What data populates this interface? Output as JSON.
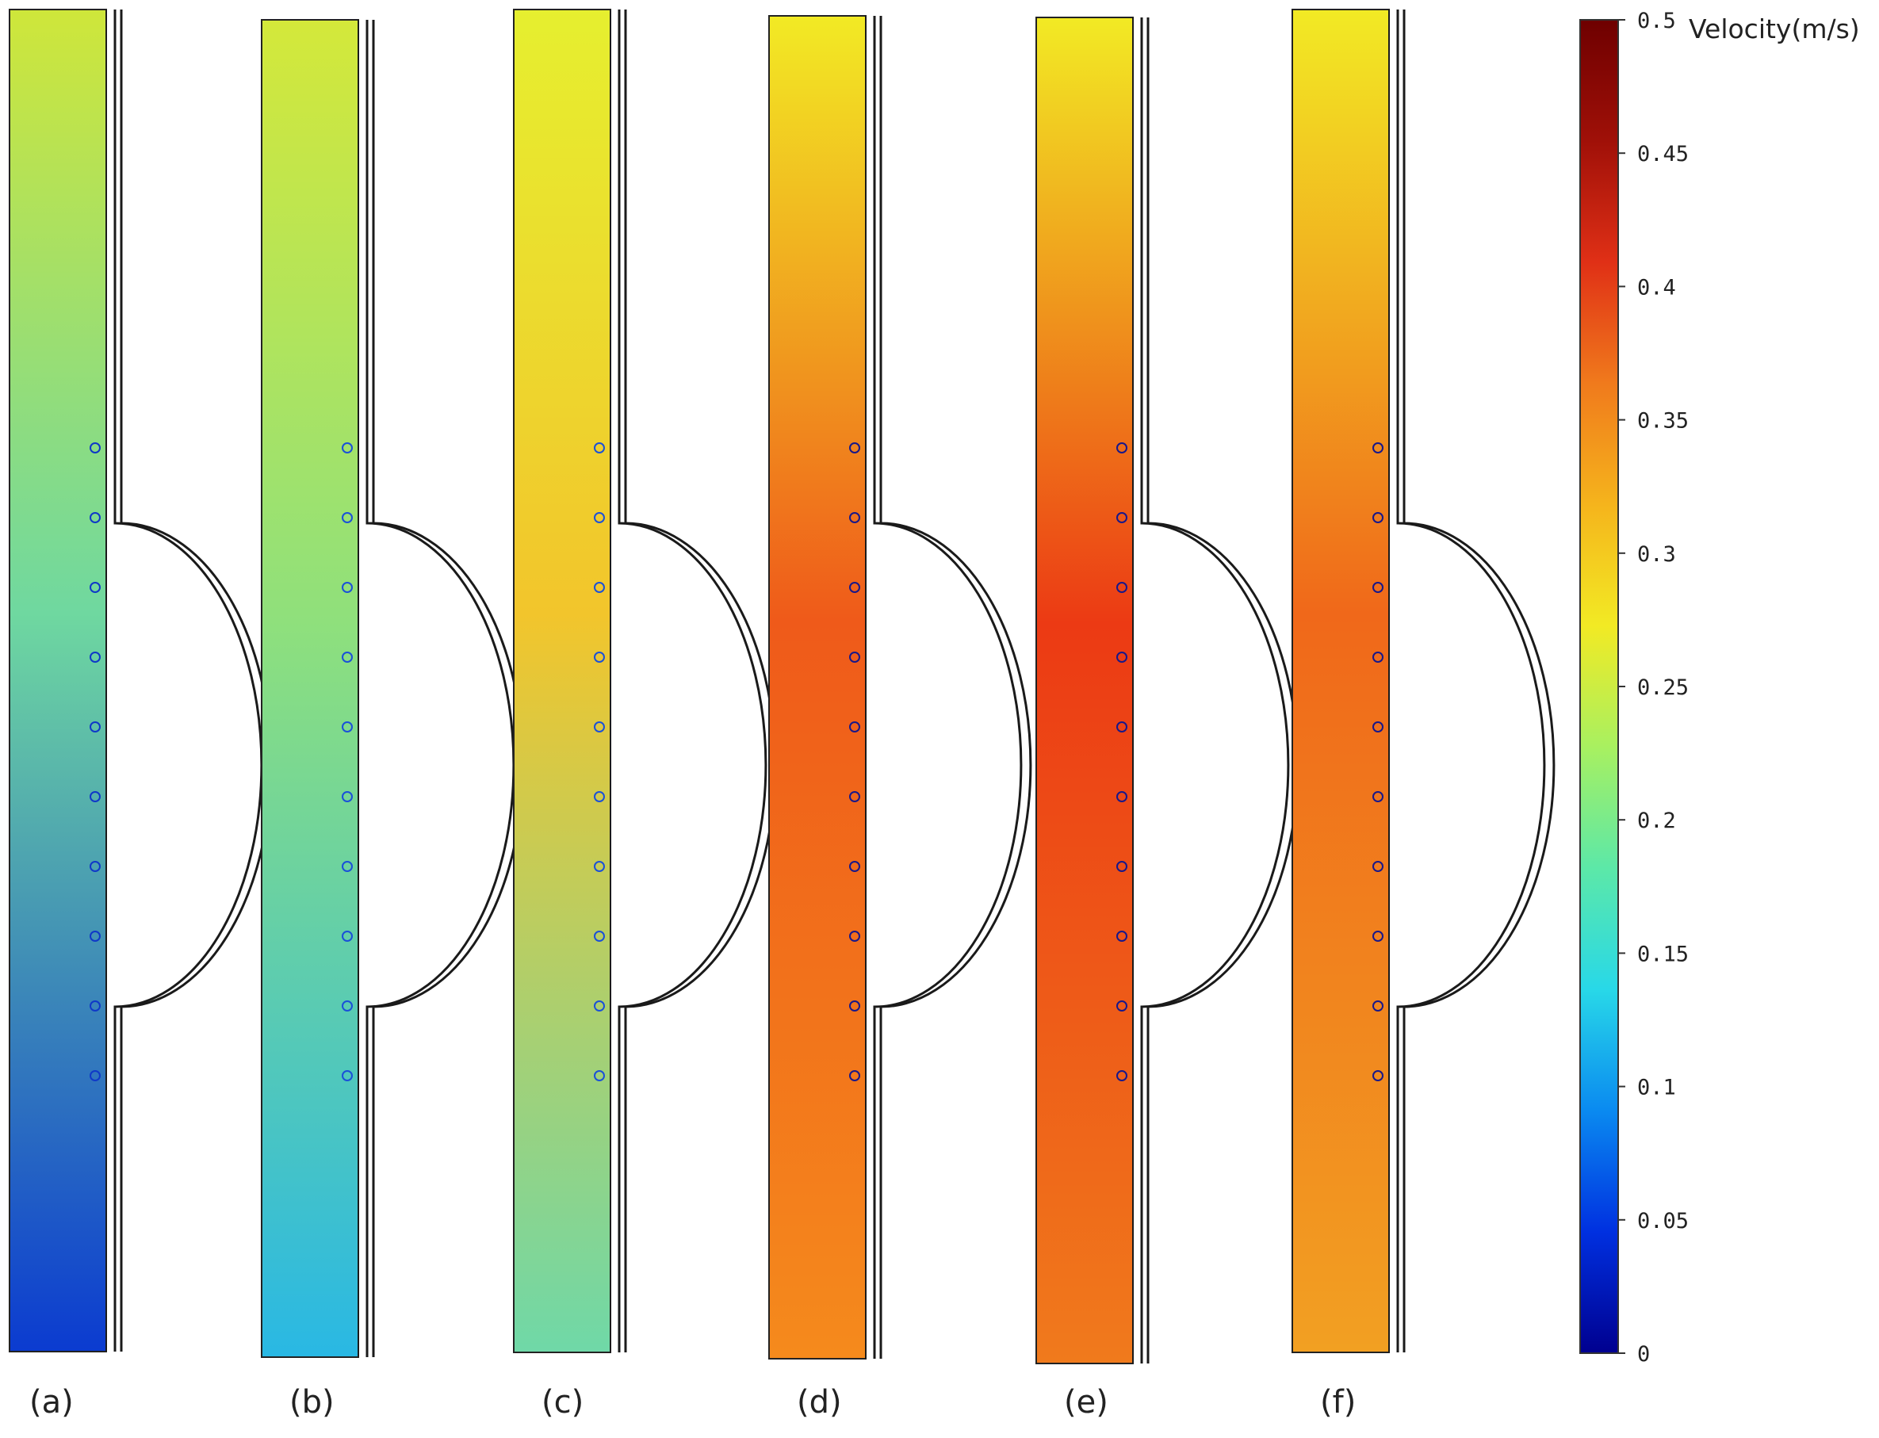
{
  "figure": {
    "panels": [
      {
        "label": "(a)",
        "fill_top": "#cfe63a",
        "fill_mid": "#6fd8a0",
        "fill_bottom": "#0b3bd0",
        "ring_color": "#0f38c8"
      },
      {
        "label": "(b)",
        "fill_top": "#d4e83a",
        "fill_mid": "#8fe07c",
        "fill_bottom": "#29b8e4",
        "ring_color": "#1a50d8"
      },
      {
        "label": "(c)",
        "fill_top": "#e6ef2f",
        "fill_mid": "#f2c52c",
        "fill_bottom": "#6fd8a8",
        "ring_color": "#1a50d8"
      },
      {
        "label": "(d)",
        "fill_top": "#f2ea24",
        "fill_mid": "#ef5a1a",
        "fill_bottom": "#f58a1c",
        "ring_color": "#17178a"
      },
      {
        "label": "(e)",
        "fill_top": "#f2ea24",
        "fill_mid": "#ec3a14",
        "fill_bottom": "#f07a1c",
        "ring_color": "#17178a"
      },
      {
        "label": "(f)",
        "fill_top": "#f2ea24",
        "fill_mid": "#f0681a",
        "fill_bottom": "#f2a022",
        "ring_color": "#17178a"
      }
    ]
  },
  "colorbar": {
    "title": "Velocity(m/s)",
    "ticks": [
      "0",
      "0.05",
      "0.1",
      "0.15",
      "0.2",
      "0.25",
      "0.3",
      "0.35",
      "0.4",
      "0.45",
      "0.5"
    ],
    "range": [
      0,
      0.5
    ],
    "colors": [
      "#00008f",
      "#0030e0",
      "#0a8af0",
      "#28d8e8",
      "#5ce8a8",
      "#a8f060",
      "#f2ea24",
      "#f5b41c",
      "#f07a1c",
      "#e03016",
      "#a01008",
      "#6e0000"
    ]
  }
}
